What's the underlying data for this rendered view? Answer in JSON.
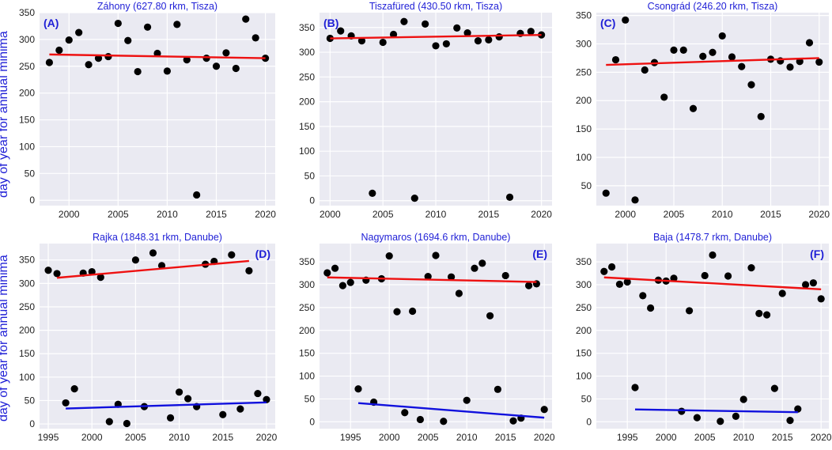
{
  "figure": {
    "ylabel": "day of year for annual minima",
    "colors": {
      "background": "#eaeaf2",
      "grid": "#ffffff",
      "title": "#1f1fd6",
      "points": "#000000",
      "trend_high": "#ee1111",
      "trend_low": "#1010dd"
    }
  },
  "chart_data": [
    {
      "type": "scatter",
      "title": "Záhony  (627.80 rkm, Tisza)",
      "panel_label": "(A)",
      "label_pos": "top-left",
      "xlim": [
        1997,
        2021
      ],
      "ylim": [
        -10,
        350
      ],
      "xticks": [
        2000,
        2005,
        2010,
        2015,
        2020
      ],
      "yticks": [
        0,
        50,
        100,
        150,
        200,
        250,
        300,
        350
      ],
      "series": [
        {
          "name": "annual minima",
          "color": "#000000",
          "x": [
            1998,
            1999,
            2000,
            2001,
            2002,
            2003,
            2004,
            2005,
            2006,
            2007,
            2008,
            2009,
            2010,
            2011,
            2012,
            2013,
            2014,
            2015,
            2016,
            2017,
            2018,
            2019,
            2020
          ],
          "y": [
            257,
            280,
            299,
            313,
            253,
            265,
            268,
            330,
            298,
            240,
            323,
            274,
            241,
            328,
            262,
            10,
            265,
            250,
            275,
            246,
            338,
            303,
            265
          ]
        }
      ],
      "trendlines": [
        {
          "name": "trend",
          "color": "#ee1111",
          "x": [
            1998,
            2020
          ],
          "y": [
            272,
            265
          ]
        }
      ]
    },
    {
      "type": "scatter",
      "title": "Tiszafüred  (430.50 rkm, Tisza)",
      "panel_label": "(B)",
      "label_pos": "top-left",
      "xlim": [
        1999,
        2021
      ],
      "ylim": [
        -10,
        380
      ],
      "xticks": [
        2000,
        2005,
        2010,
        2015,
        2020
      ],
      "yticks": [
        0,
        50,
        100,
        150,
        200,
        250,
        300,
        350
      ],
      "series": [
        {
          "name": "annual minima",
          "color": "#000000",
          "x": [
            2000,
            2001,
            2002,
            2003,
            2004,
            2005,
            2006,
            2007,
            2008,
            2009,
            2010,
            2011,
            2012,
            2013,
            2014,
            2015,
            2016,
            2017,
            2018,
            2019,
            2020
          ],
          "y": [
            328,
            343,
            333,
            323,
            15,
            320,
            336,
            362,
            5,
            357,
            313,
            317,
            349,
            339,
            323,
            325,
            331,
            7,
            338,
            342,
            335
          ]
        }
      ],
      "trendlines": [
        {
          "name": "trend",
          "color": "#ee1111",
          "x": [
            2000,
            2020
          ],
          "y": [
            328,
            335
          ]
        }
      ]
    },
    {
      "type": "scatter",
      "title": "Csongrád  (246.20 rkm, Tisza)",
      "panel_label": "(C)",
      "label_pos": "top-left",
      "xlim": [
        1997,
        2021
      ],
      "ylim": [
        15,
        355
      ],
      "xticks": [
        2000,
        2005,
        2010,
        2015,
        2020
      ],
      "yticks": [
        50,
        100,
        150,
        200,
        250,
        300,
        350
      ],
      "series": [
        {
          "name": "annual minima",
          "color": "#000000",
          "x": [
            1998,
            1999,
            2000,
            2001,
            2002,
            2003,
            2004,
            2005,
            2006,
            2007,
            2008,
            2009,
            2010,
            2011,
            2012,
            2013,
            2014,
            2015,
            2016,
            2017,
            2018,
            2019,
            2020
          ],
          "y": [
            37,
            272,
            342,
            25,
            254,
            267,
            206,
            289,
            289,
            186,
            278,
            285,
            314,
            277,
            260,
            228,
            172,
            273,
            270,
            259,
            269,
            302,
            268
          ]
        }
      ],
      "trendlines": [
        {
          "name": "trend",
          "color": "#ee1111",
          "x": [
            1998,
            2020
          ],
          "y": [
            263,
            275
          ]
        }
      ]
    },
    {
      "type": "scatter",
      "title": "Rajka  (1848.31 rkm, Danube)",
      "panel_label": "(D)",
      "label_pos": "top-right",
      "xlim": [
        1994,
        2021
      ],
      "ylim": [
        -10,
        385
      ],
      "xticks": [
        1995,
        2000,
        2005,
        2010,
        2015,
        2020
      ],
      "yticks": [
        0,
        50,
        100,
        150,
        200,
        250,
        300,
        350
      ],
      "series": [
        {
          "name": "annual minima",
          "color": "#000000",
          "x": [
            1995,
            1996,
            1997,
            1998,
            1999,
            2000,
            2001,
            2002,
            2003,
            2004,
            2005,
            2006,
            2007,
            2008,
            2009,
            2010,
            2011,
            2012,
            2013,
            2014,
            2015,
            2016,
            2017,
            2018,
            2019,
            2020
          ],
          "y": [
            328,
            321,
            45,
            75,
            322,
            325,
            313,
            5,
            42,
            1,
            350,
            37,
            365,
            338,
            13,
            68,
            54,
            37,
            341,
            347,
            20,
            361,
            32,
            327,
            65,
            52
          ]
        }
      ],
      "trendlines": [
        {
          "name": "trend (high)",
          "color": "#ee1111",
          "x": [
            1996,
            2018
          ],
          "y": [
            312,
            348
          ]
        },
        {
          "name": "trend (low)",
          "color": "#1010dd",
          "x": [
            1997,
            2020
          ],
          "y": [
            33,
            46
          ]
        }
      ]
    },
    {
      "type": "scatter",
      "title": "Nagymaros  (1694.6 rkm, Danube)",
      "panel_label": "(E)",
      "label_pos": "top-right",
      "xlim": [
        1991,
        2021
      ],
      "ylim": [
        -15,
        390
      ],
      "xticks": [
        1995,
        2000,
        2005,
        2010,
        2015,
        2020
      ],
      "yticks": [
        0,
        50,
        100,
        150,
        200,
        250,
        300,
        350
      ],
      "series": [
        {
          "name": "annual minima",
          "color": "#000000",
          "x": [
            1992,
            1993,
            1994,
            1995,
            1996,
            1997,
            1998,
            1999,
            2000,
            2001,
            2002,
            2003,
            2004,
            2005,
            2006,
            2007,
            2008,
            2009,
            2010,
            2011,
            2012,
            2013,
            2014,
            2015,
            2016,
            2017,
            2018,
            2019,
            2020
          ],
          "y": [
            326,
            336,
            298,
            305,
            72,
            310,
            43,
            313,
            363,
            241,
            20,
            242,
            5,
            318,
            364,
            1,
            317,
            281,
            47,
            336,
            347,
            232,
            71,
            320,
            2,
            8,
            298,
            302,
            27
          ]
        }
      ],
      "trendlines": [
        {
          "name": "trend (high)",
          "color": "#ee1111",
          "x": [
            1992,
            2019
          ],
          "y": [
            316,
            306
          ]
        },
        {
          "name": "trend (low)",
          "color": "#1010dd",
          "x": [
            1996,
            2020
          ],
          "y": [
            41,
            9
          ]
        }
      ]
    },
    {
      "type": "scatter",
      "title": "Baja  (1478.7 rkm, Danube)",
      "panel_label": "(F)",
      "label_pos": "top-right",
      "xlim": [
        1991,
        2021
      ],
      "ylim": [
        -15,
        390
      ],
      "xticks": [
        1995,
        2000,
        2005,
        2010,
        2015,
        2020
      ],
      "yticks": [
        0,
        50,
        100,
        150,
        200,
        250,
        300,
        350
      ],
      "series": [
        {
          "name": "annual minima",
          "color": "#000000",
          "x": [
            1992,
            1993,
            1994,
            1995,
            1996,
            1997,
            1998,
            1999,
            2000,
            2001,
            2002,
            2003,
            2004,
            2005,
            2006,
            2007,
            2008,
            2009,
            2010,
            2011,
            2012,
            2013,
            2014,
            2015,
            2016,
            2017,
            2018,
            2019,
            2020
          ],
          "y": [
            329,
            339,
            301,
            306,
            75,
            276,
            249,
            310,
            308,
            314,
            23,
            243,
            9,
            320,
            365,
            1,
            319,
            12,
            49,
            337,
            237,
            234,
            73,
            281,
            3,
            28,
            300,
            304,
            269
          ]
        }
      ],
      "trendlines": [
        {
          "name": "trend (high)",
          "color": "#ee1111",
          "x": [
            1992,
            2020
          ],
          "y": [
            316,
            290
          ]
        },
        {
          "name": "trend (low)",
          "color": "#1010dd",
          "x": [
            1996,
            2017
          ],
          "y": [
            27,
            21
          ]
        }
      ]
    }
  ]
}
